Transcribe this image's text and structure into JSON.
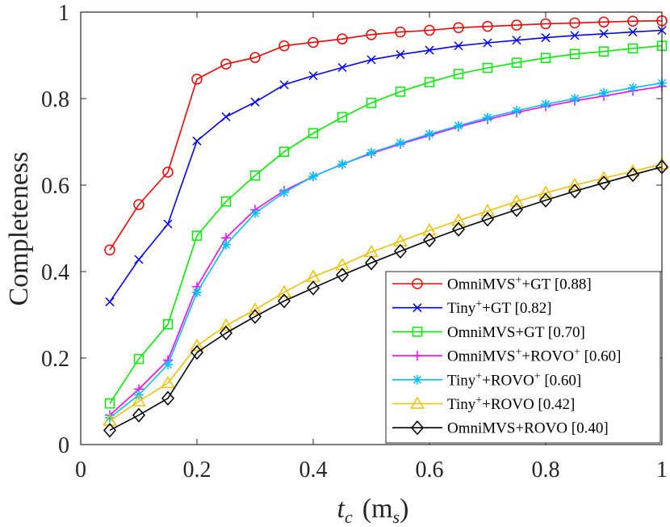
{
  "chart_data": {
    "type": "line",
    "xlabel": {
      "main": "t",
      "sub": "c",
      "unit_main": "m",
      "unit_sub": "s"
    },
    "ylabel": "Completeness",
    "xlim": [
      0,
      1
    ],
    "ylim": [
      0,
      1
    ],
    "xticks": [
      "0",
      "0.2",
      "0.4",
      "0.6",
      "0.8",
      "1"
    ],
    "yticks": [
      "0",
      "0.2",
      "0.4",
      "0.6",
      "0.8",
      "1"
    ],
    "legend_position": "bottom-right",
    "x": [
      0.05,
      0.1,
      0.15,
      0.2,
      0.25,
      0.3,
      0.35,
      0.4,
      0.45,
      0.5,
      0.55,
      0.6,
      0.65,
      0.7,
      0.75,
      0.8,
      0.85,
      0.9,
      0.95,
      1.0
    ],
    "series": [
      {
        "name": "OmniMVS+GT [0.88]",
        "label_parts": [
          {
            "t": "OmniMVS"
          },
          {
            "t": "+",
            "sup": true
          },
          {
            "t": "+GT [0.88]"
          }
        ],
        "color": "#ff0000",
        "marker": "circle",
        "values": [
          0.45,
          0.555,
          0.63,
          0.845,
          0.88,
          0.895,
          0.922,
          0.93,
          0.938,
          0.948,
          0.954,
          0.958,
          0.964,
          0.967,
          0.97,
          0.973,
          0.975,
          0.977,
          0.979,
          0.98
        ]
      },
      {
        "name": "Tiny+GT [0.82]",
        "label_parts": [
          {
            "t": "Tiny"
          },
          {
            "t": "+",
            "sup": true
          },
          {
            "t": "+GT [0.82]"
          }
        ],
        "color": "#0000ff",
        "marker": "x",
        "values": [
          0.33,
          0.428,
          0.51,
          0.702,
          0.758,
          0.792,
          0.832,
          0.853,
          0.872,
          0.89,
          0.902,
          0.912,
          0.922,
          0.929,
          0.935,
          0.941,
          0.946,
          0.95,
          0.954,
          0.958
        ]
      },
      {
        "name": "OmniMVS+GT [0.70]",
        "label_parts": [
          {
            "t": "OmniMVS+GT [0.70]"
          }
        ],
        "color": "#00ee00",
        "marker": "square",
        "values": [
          0.095,
          0.198,
          0.278,
          0.483,
          0.562,
          0.622,
          0.677,
          0.72,
          0.757,
          0.79,
          0.816,
          0.838,
          0.857,
          0.871,
          0.883,
          0.894,
          0.903,
          0.909,
          0.916,
          0.922
        ]
      },
      {
        "name": "OmniMVS+ROVO+ [0.60]",
        "label_parts": [
          {
            "t": "OmniMVS"
          },
          {
            "t": "+",
            "sup": true
          },
          {
            "t": "+ROVO"
          },
          {
            "t": "+",
            "sup": true
          },
          {
            "t": " [0.60]"
          }
        ],
        "color": "#ff00ff",
        "marker": "plus",
        "values": [
          0.068,
          0.128,
          0.195,
          0.365,
          0.478,
          0.543,
          0.587,
          0.62,
          0.648,
          0.673,
          0.695,
          0.715,
          0.735,
          0.752,
          0.768,
          0.782,
          0.795,
          0.806,
          0.818,
          0.828
        ]
      },
      {
        "name": "Tiny+ROVO+ [0.60]",
        "label_parts": [
          {
            "t": "Tiny"
          },
          {
            "t": "+",
            "sup": true
          },
          {
            "t": "+ROVO"
          },
          {
            "t": "+",
            "sup": true
          },
          {
            "t": " [0.60]"
          }
        ],
        "color": "#00bfff",
        "marker": "asterisk",
        "values": [
          0.062,
          0.115,
          0.185,
          0.352,
          0.462,
          0.535,
          0.583,
          0.62,
          0.648,
          0.675,
          0.697,
          0.718,
          0.737,
          0.756,
          0.772,
          0.787,
          0.8,
          0.813,
          0.825,
          0.836
        ]
      },
      {
        "name": "Tiny+ROVO [0.42]",
        "label_parts": [
          {
            "t": "Tiny"
          },
          {
            "t": "+",
            "sup": true
          },
          {
            "t": "+ROVO [0.42]"
          }
        ],
        "color": "#f0c000",
        "marker": "triangle",
        "values": [
          0.055,
          0.1,
          0.142,
          0.228,
          0.275,
          0.312,
          0.352,
          0.388,
          0.415,
          0.445,
          0.47,
          0.495,
          0.518,
          0.54,
          0.562,
          0.582,
          0.6,
          0.616,
          0.632,
          0.648
        ]
      },
      {
        "name": "OmniMVS+ROVO [0.40]",
        "label_parts": [
          {
            "t": "OmniMVS+ROVO [0.40]"
          }
        ],
        "color": "#000000",
        "marker": "diamond",
        "values": [
          0.033,
          0.068,
          0.107,
          0.213,
          0.258,
          0.296,
          0.332,
          0.362,
          0.392,
          0.42,
          0.447,
          0.473,
          0.498,
          0.521,
          0.543,
          0.565,
          0.586,
          0.605,
          0.624,
          0.642
        ]
      }
    ]
  }
}
